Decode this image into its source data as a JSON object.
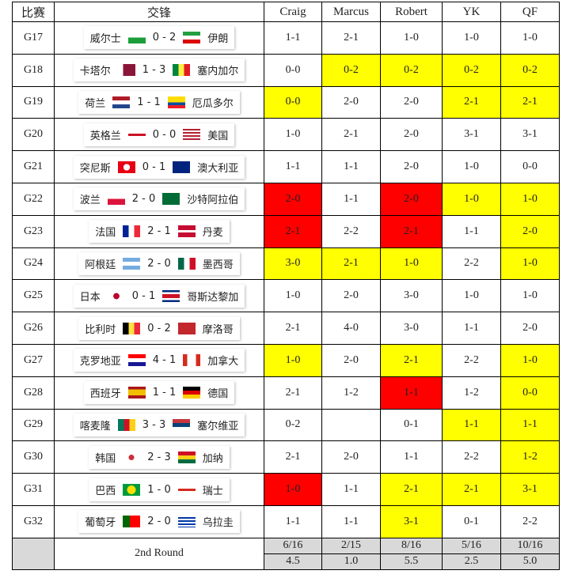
{
  "header": [
    "比赛",
    "交锋",
    "Craig",
    "Marcus",
    "Robert",
    "YK",
    "QF"
  ],
  "rows": [
    {
      "game": "G17",
      "home": "威尔士",
      "score": "0 - 2",
      "away": "伊朗",
      "picks": [
        "1-1",
        "2-1",
        "1-0",
        "1-0",
        "1-0"
      ],
      "highlights": [
        null,
        null,
        null,
        null,
        null
      ]
    },
    {
      "game": "G18",
      "home": "卡塔尔",
      "score": "1 - 3",
      "away": "塞内加尔",
      "picks": [
        "0-0",
        "0-2",
        "0-2",
        "0-2",
        "0-2"
      ],
      "highlights": [
        null,
        "#ffff00",
        "#ffff00",
        "#ffff00",
        "#ffff00"
      ]
    },
    {
      "game": "G19",
      "home": "荷兰",
      "score": "1 - 1",
      "away": "厄瓜多尔",
      "picks": [
        "0-0",
        "2-0",
        "2-0",
        "2-1",
        "2-1"
      ],
      "highlights": [
        "#ffff00",
        null,
        null,
        "#ffff00",
        "#ffff00"
      ]
    },
    {
      "game": "G20",
      "home": "英格兰",
      "score": "0 - 0",
      "away": "美国",
      "picks": [
        "1-0",
        "2-1",
        "2-0",
        "3-1",
        "3-1"
      ],
      "highlights": [
        null,
        null,
        null,
        null,
        null
      ]
    },
    {
      "game": "G21",
      "home": "突尼斯",
      "score": "0 - 1",
      "away": "澳大利亚",
      "picks": [
        "1-1",
        "1-1",
        "2-0",
        "1-0",
        "0-0"
      ],
      "highlights": [
        null,
        null,
        null,
        null,
        null
      ]
    },
    {
      "game": "G22",
      "home": "波兰",
      "score": "2 - 0",
      "away": "沙特阿拉伯",
      "picks": [
        "2-0",
        "1-1",
        "2-0",
        "1-0",
        "1-0"
      ],
      "highlights": [
        "#ff0000",
        null,
        "#ff0000",
        "#ffff00",
        "#ffff00"
      ]
    },
    {
      "game": "G23",
      "home": "法国",
      "score": "2 - 1",
      "away": "丹麦",
      "picks": [
        "2-1",
        "2-2",
        "2-1",
        "1-1",
        "2-0"
      ],
      "highlights": [
        "#ff0000",
        null,
        "#ff0000",
        null,
        "#ffff00"
      ]
    },
    {
      "game": "G24",
      "home": "阿根廷",
      "score": "2 - 0",
      "away": "墨西哥",
      "picks": [
        "3-0",
        "2-1",
        "1-0",
        "2-2",
        "1-0"
      ],
      "highlights": [
        "#ffff00",
        "#ffff00",
        "#ffff00",
        null,
        "#ffff00"
      ]
    },
    {
      "game": "G25",
      "home": "日本",
      "score": "0 - 1",
      "away": "哥斯达黎加",
      "picks": [
        "1-0",
        "2-0",
        "3-0",
        "1-0",
        "1-0"
      ],
      "highlights": [
        null,
        null,
        null,
        null,
        null
      ]
    },
    {
      "game": "G26",
      "home": "比利时",
      "score": "0 - 2",
      "away": "摩洛哥",
      "picks": [
        "2-1",
        "4-0",
        "3-0",
        "1-1",
        "2-0"
      ],
      "highlights": [
        null,
        null,
        null,
        null,
        null
      ]
    },
    {
      "game": "G27",
      "home": "克罗地亚",
      "score": "4 - 1",
      "away": "加拿大",
      "picks": [
        "1-0",
        "2-0",
        "2-1",
        "2-2",
        "1-0"
      ],
      "highlights": [
        "#ffff00",
        null,
        "#ffff00",
        null,
        "#ffff00"
      ]
    },
    {
      "game": "G28",
      "home": "西班牙",
      "score": "1 - 1",
      "away": "德国",
      "picks": [
        "2-1",
        "1-2",
        "1-1",
        "1-2",
        "0-0"
      ],
      "highlights": [
        null,
        null,
        "#ff0000",
        null,
        "#ffff00"
      ]
    },
    {
      "game": "G29",
      "home": "喀麦隆",
      "score": "3 - 3",
      "away": "塞尔维亚",
      "picks": [
        "0-2",
        null,
        "0-1",
        "1-1",
        "1-1"
      ],
      "highlights": [
        null,
        null,
        null,
        "#ffff00",
        "#ffff00"
      ]
    },
    {
      "game": "G30",
      "home": "韩国",
      "score": "2 - 3",
      "away": "加纳",
      "picks": [
        "2-1",
        "2-0",
        "1-1",
        "2-2",
        "1-2"
      ],
      "highlights": [
        null,
        null,
        null,
        null,
        "#ffff00"
      ]
    },
    {
      "game": "G31",
      "home": "巴西",
      "score": "1 - 0",
      "away": "瑞士",
      "picks": [
        "1-0",
        "1-1",
        "2-1",
        "2-1",
        "3-1"
      ],
      "highlights": [
        "#ff0000",
        null,
        "#ffff00",
        "#ffff00",
        "#ffff00"
      ]
    },
    {
      "game": "G32",
      "home": "葡萄牙",
      "score": "2 - 0",
      "away": "乌拉圭",
      "picks": [
        "1-1",
        "1-1",
        "3-1",
        "0-1",
        "2-2"
      ],
      "highlights": [
        null,
        null,
        "#ffff00",
        null,
        null
      ]
    }
  ],
  "footer": {
    "label": "2nd Round",
    "hits": [
      "6/16",
      "2/15",
      "8/16",
      "5/16",
      "10/16"
    ],
    "points": [
      "4.5",
      "1.0",
      "5.5",
      "2.5",
      "5.0"
    ]
  }
}
